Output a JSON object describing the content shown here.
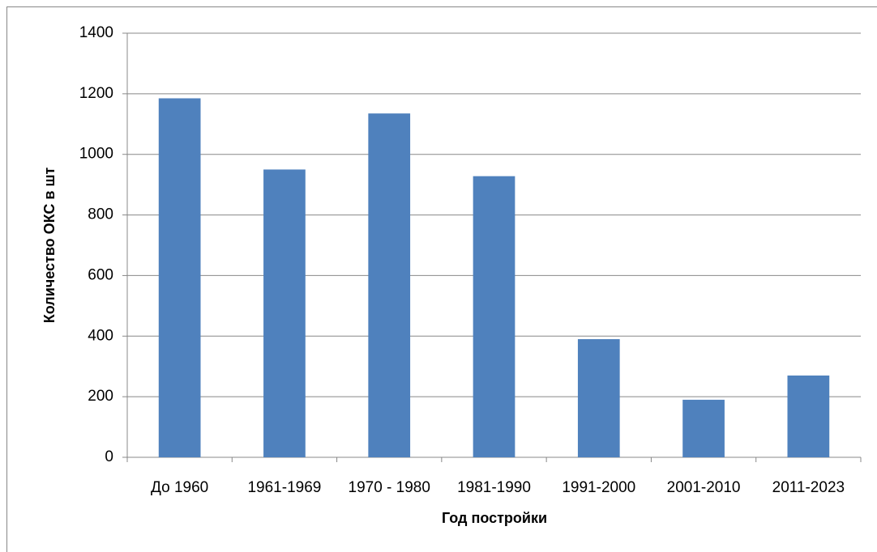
{
  "chart_data": {
    "type": "bar",
    "categories": [
      "До 1960",
      "1961-1969",
      "1970 - 1980",
      "1981-1990",
      "1991-2000",
      "2001-2010",
      "2011-2023"
    ],
    "values": [
      1185,
      950,
      1135,
      928,
      390,
      190,
      270
    ],
    "color": "#4f81bd",
    "xlabel": "Год постройки",
    "ylabel": "Количество ОКС в шт",
    "ylim": [
      0,
      1400
    ],
    "yticks": [
      0,
      200,
      400,
      600,
      800,
      1000,
      1200,
      1400
    ],
    "grid": true
  }
}
